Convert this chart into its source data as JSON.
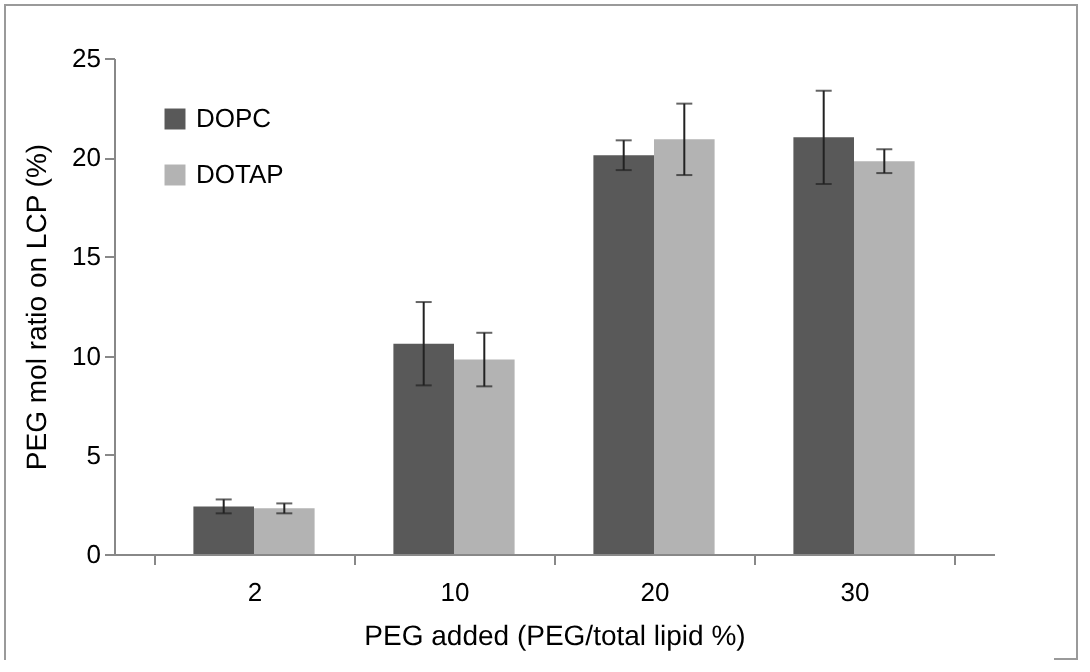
{
  "chart_data": {
    "type": "bar",
    "xlabel": "PEG added (PEG/total lipid %)",
    "ylabel": "PEG  mol ratio on LCP (%)",
    "categories": [
      "2",
      "10",
      "20",
      "30"
    ],
    "series": [
      {
        "name": "DOPC",
        "color": "#595959",
        "values": [
          2.4,
          10.6,
          20.1,
          21.0
        ],
        "errors": [
          0.35,
          2.1,
          0.75,
          2.35
        ]
      },
      {
        "name": "DOTAP",
        "color": "#b3b3b3",
        "values": [
          2.3,
          9.8,
          20.9,
          19.8
        ],
        "errors": [
          0.25,
          1.35,
          1.8,
          0.6
        ]
      }
    ],
    "ylim": [
      0,
      25
    ],
    "yticks": [
      0,
      5,
      10,
      15,
      20,
      25
    ],
    "grid": false,
    "legend": "top left"
  }
}
